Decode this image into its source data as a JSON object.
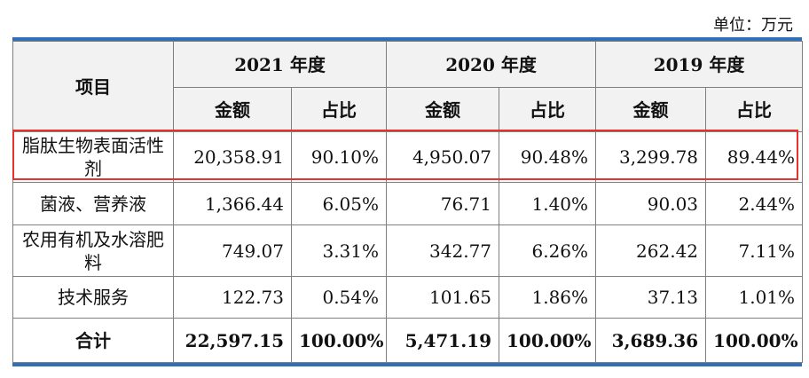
{
  "unit_label": "单位：万元",
  "header": {
    "item": "项目",
    "years": [
      "2021 年度",
      "2020 年度",
      "2019 年度"
    ],
    "amount": "金额",
    "ratio": "占比"
  },
  "rows": [
    {
      "item": "脂肽生物表面活性剂",
      "v": [
        "20,358.91",
        "90.10%",
        "4,950.07",
        "90.48%",
        "3,299.78",
        "89.44%"
      ],
      "highlighted": true
    },
    {
      "item": "菌液、营养液",
      "v": [
        "1,366.44",
        "6.05%",
        "76.71",
        "1.40%",
        "90.03",
        "2.44%"
      ]
    },
    {
      "item": "农用有机及水溶肥料",
      "v": [
        "749.07",
        "3.31%",
        "342.77",
        "6.26%",
        "262.42",
        "7.11%"
      ]
    },
    {
      "item": "技术服务",
      "v": [
        "122.73",
        "0.54%",
        "101.65",
        "1.86%",
        "37.13",
        "1.01%"
      ]
    },
    {
      "item": "合计",
      "v": [
        "22,597.15",
        "100.00%",
        "5,471.19",
        "100.00%",
        "3,689.36",
        "100.00%"
      ],
      "total": true
    }
  ],
  "colors": {
    "rule": "#2e6fb7",
    "highlight": "#e8312a",
    "header_bg": "#f2f2f2"
  }
}
